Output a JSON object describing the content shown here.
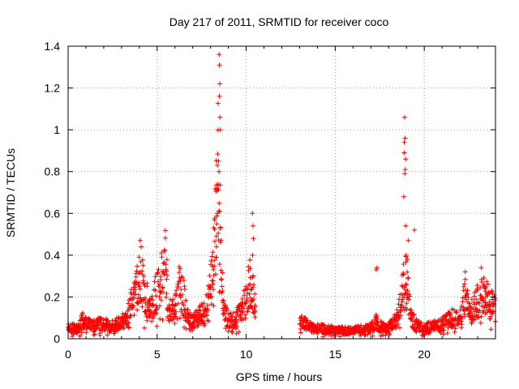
{
  "chart_data": {
    "type": "scatter",
    "title": "Day 217 of 2011, SRMTID for receiver coco",
    "xlabel": "GPS time / hours",
    "ylabel": "SRMTID / TECUs",
    "xlim": [
      0,
      24
    ],
    "ylim": [
      0,
      1.4
    ],
    "xticks": [
      0,
      5,
      10,
      15,
      20
    ],
    "xtick_labels": [
      "0",
      "5",
      "10",
      "15",
      "20"
    ],
    "yticks": [
      0,
      0.2,
      0.4,
      0.6,
      0.8,
      1.0,
      1.2,
      1.4
    ],
    "ytick_labels": [
      "0",
      "0.2",
      "0.4",
      "0.6",
      "0.8",
      "1",
      "1.2",
      "1.4"
    ],
    "grid": true,
    "marker": "plus",
    "color": "#ff0000",
    "gap_hours": [
      10.5,
      13.0
    ],
    "series": [
      {
        "name": "SRMTID",
        "profile": [
          [
            0.0,
            0.05
          ],
          [
            0.5,
            0.05
          ],
          [
            0.8,
            0.09
          ],
          [
            1.0,
            0.07
          ],
          [
            1.5,
            0.07
          ],
          [
            2.0,
            0.07
          ],
          [
            2.5,
            0.06
          ],
          [
            3.0,
            0.08
          ],
          [
            3.3,
            0.1
          ],
          [
            3.6,
            0.18
          ],
          [
            3.9,
            0.25
          ],
          [
            4.1,
            0.3
          ],
          [
            4.3,
            0.2
          ],
          [
            4.6,
            0.17
          ],
          [
            5.0,
            0.22
          ],
          [
            5.3,
            0.35
          ],
          [
            5.5,
            0.38
          ],
          [
            5.6,
            0.15
          ],
          [
            6.0,
            0.14
          ],
          [
            6.2,
            0.25
          ],
          [
            6.5,
            0.2
          ],
          [
            6.7,
            0.1
          ],
          [
            7.0,
            0.08
          ],
          [
            7.5,
            0.12
          ],
          [
            7.8,
            0.15
          ],
          [
            8.0,
            0.25
          ],
          [
            8.2,
            0.4
          ],
          [
            8.35,
            0.65
          ],
          [
            8.45,
            0.9
          ],
          [
            8.55,
            0.5
          ],
          [
            8.7,
            0.15
          ],
          [
            9.0,
            0.08
          ],
          [
            9.5,
            0.1
          ],
          [
            9.8,
            0.15
          ],
          [
            10.0,
            0.18
          ],
          [
            10.2,
            0.3
          ],
          [
            10.4,
            0.22
          ],
          [
            10.5,
            0.15
          ],
          [
            13.0,
            0.1
          ],
          [
            13.5,
            0.06
          ],
          [
            14.0,
            0.05
          ],
          [
            15.0,
            0.04
          ],
          [
            16.0,
            0.04
          ],
          [
            17.0,
            0.05
          ],
          [
            17.3,
            0.08
          ],
          [
            17.5,
            0.06
          ],
          [
            18.0,
            0.05
          ],
          [
            18.5,
            0.1
          ],
          [
            18.8,
            0.25
          ],
          [
            19.0,
            0.3
          ],
          [
            19.3,
            0.1
          ],
          [
            19.6,
            0.07
          ],
          [
            20.0,
            0.05
          ],
          [
            21.0,
            0.07
          ],
          [
            21.5,
            0.1
          ],
          [
            22.0,
            0.1
          ],
          [
            22.3,
            0.2
          ],
          [
            22.6,
            0.12
          ],
          [
            23.0,
            0.18
          ],
          [
            23.3,
            0.22
          ],
          [
            23.6,
            0.18
          ],
          [
            24.0,
            0.15
          ]
        ],
        "outliers": [
          [
            8.48,
            1.36
          ],
          [
            8.5,
            1.31
          ],
          [
            8.52,
            1.22
          ],
          [
            8.5,
            1.16
          ],
          [
            8.53,
            1.06
          ],
          [
            8.55,
            1.0
          ],
          [
            8.45,
            0.85
          ],
          [
            8.47,
            0.8
          ],
          [
            8.42,
            0.74
          ],
          [
            8.4,
            0.72
          ],
          [
            8.38,
            0.6
          ],
          [
            8.35,
            0.55
          ],
          [
            8.33,
            0.49
          ],
          [
            10.35,
            0.6
          ],
          [
            10.38,
            0.54
          ],
          [
            10.4,
            0.48
          ],
          [
            10.36,
            0.4
          ],
          [
            18.9,
            1.06
          ],
          [
            18.92,
            0.96
          ],
          [
            18.88,
            0.94
          ],
          [
            18.87,
            0.89
          ],
          [
            18.95,
            0.86
          ],
          [
            18.93,
            0.81
          ],
          [
            18.91,
            0.79
          ],
          [
            18.85,
            0.68
          ],
          [
            18.95,
            0.54
          ],
          [
            19.1,
            0.47
          ],
          [
            19.45,
            0.52
          ],
          [
            18.98,
            0.4
          ],
          [
            19.05,
            0.38
          ],
          [
            17.3,
            0.33
          ],
          [
            17.35,
            0.34
          ],
          [
            22.3,
            0.32
          ],
          [
            23.2,
            0.34
          ],
          [
            4.05,
            0.47
          ],
          [
            4.1,
            0.44
          ],
          [
            5.4,
            0.42
          ]
        ]
      }
    ]
  }
}
